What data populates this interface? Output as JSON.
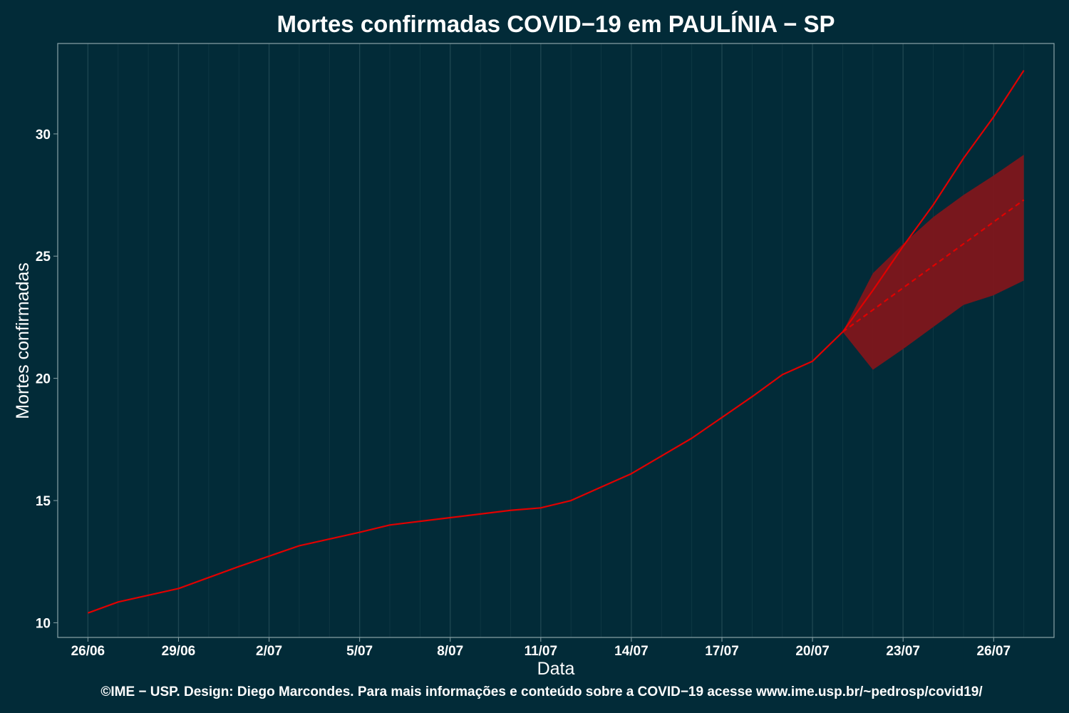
{
  "chart_data": {
    "type": "line",
    "title": "Mortes confirmadas COVID−19 em PAULÍNIA − SP",
    "xlabel": "Data",
    "ylabel": "Mortes confirmadas",
    "caption": "©IME − USP. Design: Diego Marcondes. Para mais informações e conteúdo sobre a COVID−19 acesse www.ime.usp.br/~pedrosp/covid19/",
    "x_ticks": [
      "26/06",
      "29/06",
      "2/07",
      "5/07",
      "8/07",
      "11/07",
      "14/07",
      "17/07",
      "20/07",
      "23/07",
      "26/07"
    ],
    "y_ticks": [
      10,
      15,
      20,
      25,
      30
    ],
    "xlim": [
      "2020-06-25",
      "2020-07-28"
    ],
    "ylim": [
      9.4,
      33.7
    ],
    "grid": true,
    "colors": {
      "background": "#022b38",
      "grid": "#1d4550",
      "frame": "#8aa3a8",
      "line": "#e00000",
      "band": "#7e161b"
    },
    "series": [
      {
        "role": "observed",
        "x": [
          "2020-06-26",
          "2020-06-27",
          "2020-06-29",
          "2020-07-01",
          "2020-07-03",
          "2020-07-05",
          "2020-07-06",
          "2020-07-08",
          "2020-07-10",
          "2020-07-11",
          "2020-07-12",
          "2020-07-13",
          "2020-07-14",
          "2020-07-16",
          "2020-07-17",
          "2020-07-18",
          "2020-07-19",
          "2020-07-20",
          "2020-07-21"
        ],
        "y": [
          10.4,
          10.85,
          11.4,
          12.3,
          13.15,
          13.7,
          14.0,
          14.3,
          14.6,
          14.7,
          15.0,
          15.55,
          16.1,
          17.55,
          18.4,
          19.25,
          20.15,
          20.7,
          21.9
        ],
        "style": "solid"
      },
      {
        "role": "projection",
        "x": [
          "2020-07-21",
          "2020-07-22",
          "2020-07-23",
          "2020-07-24",
          "2020-07-25",
          "2020-07-26",
          "2020-07-27"
        ],
        "y": [
          21.9,
          23.6,
          25.4,
          27.1,
          29.0,
          30.7,
          32.6
        ],
        "style": "solid"
      },
      {
        "role": "trend",
        "x": [
          "2020-07-21",
          "2020-07-22",
          "2020-07-23",
          "2020-07-24",
          "2020-07-25",
          "2020-07-26",
          "2020-07-27"
        ],
        "y": [
          21.9,
          22.8,
          23.7,
          24.6,
          25.5,
          26.4,
          27.3
        ],
        "style": "dashed"
      }
    ],
    "band": {
      "x": [
        "2020-07-21",
        "2020-07-22",
        "2020-07-23",
        "2020-07-24",
        "2020-07-25",
        "2020-07-26",
        "2020-07-27"
      ],
      "lower": [
        21.9,
        20.35,
        21.2,
        22.1,
        23.0,
        23.4,
        24.0
      ],
      "upper": [
        21.9,
        24.3,
        25.5,
        26.6,
        27.5,
        28.3,
        29.15
      ]
    }
  }
}
